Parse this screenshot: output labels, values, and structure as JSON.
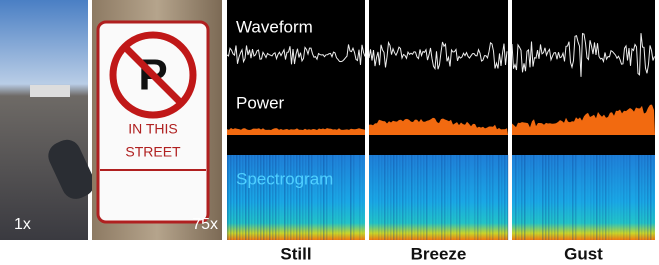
{
  "photos": {
    "left_zoom": "1x",
    "right_zoom": "75x",
    "sign_line1": "IN THIS",
    "sign_line2": "STREET"
  },
  "rows": {
    "waveform": "Waveform",
    "power": "Power",
    "spectrogram": "Spectrogram"
  },
  "columns": [
    "Still",
    "Breeze",
    "Gust"
  ]
}
